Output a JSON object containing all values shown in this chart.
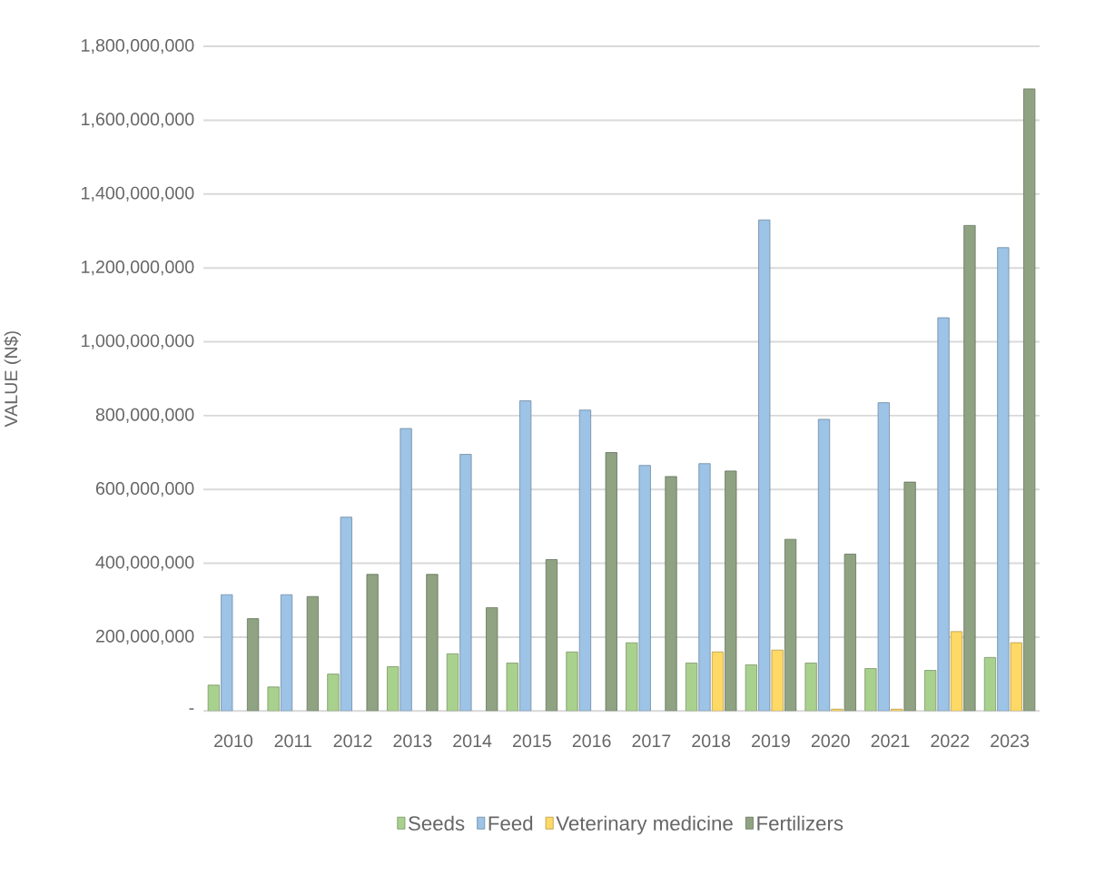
{
  "chart_data": {
    "type": "bar",
    "ylabel": "VALUE (N$)",
    "categories": [
      "2010",
      "2011",
      "2012",
      "2013",
      "2014",
      "2015",
      "2016",
      "2017",
      "2018",
      "2019",
      "2020",
      "2021",
      "2022",
      "2023"
    ],
    "series": [
      {
        "name": "Seeds",
        "color": "#a9d18e",
        "values": [
          70000000,
          65000000,
          100000000,
          120000000,
          155000000,
          130000000,
          160000000,
          185000000,
          130000000,
          125000000,
          130000000,
          115000000,
          110000000,
          145000000
        ]
      },
      {
        "name": "Feed",
        "color": "#9dc3e6",
        "values": [
          315000000,
          315000000,
          525000000,
          765000000,
          695000000,
          840000000,
          815000000,
          665000000,
          670000000,
          1330000000,
          790000000,
          835000000,
          1065000000,
          1255000000
        ]
      },
      {
        "name": "Veterinary medicine",
        "color": "#ffd966",
        "values": [
          null,
          null,
          null,
          null,
          null,
          null,
          null,
          null,
          160000000,
          165000000,
          5000000,
          5000000,
          215000000,
          185000000
        ]
      },
      {
        "name": "Fertilizers",
        "color": "#8fa382",
        "values": [
          250000000,
          310000000,
          370000000,
          370000000,
          280000000,
          410000000,
          700000000,
          635000000,
          650000000,
          465000000,
          425000000,
          620000000,
          1315000000,
          1685000000
        ]
      }
    ],
    "ylim": [
      0,
      1800000000
    ],
    "yticks": [
      {
        "value": 0,
        "label": "-"
      },
      {
        "value": 200000000,
        "label": "200,000,000"
      },
      {
        "value": 400000000,
        "label": "400,000,000"
      },
      {
        "value": 600000000,
        "label": "600,000,000"
      },
      {
        "value": 800000000,
        "label": "800,000,000"
      },
      {
        "value": 1000000000,
        "label": "1,000,000,000"
      },
      {
        "value": 1200000000,
        "label": "1,200,000,000"
      },
      {
        "value": 1400000000,
        "label": "1,400,000,000"
      },
      {
        "value": 1600000000,
        "label": "1,600,000,000"
      },
      {
        "value": 1800000000,
        "label": "1,800,000,000"
      }
    ],
    "grid": "y",
    "legend": "bottom"
  }
}
